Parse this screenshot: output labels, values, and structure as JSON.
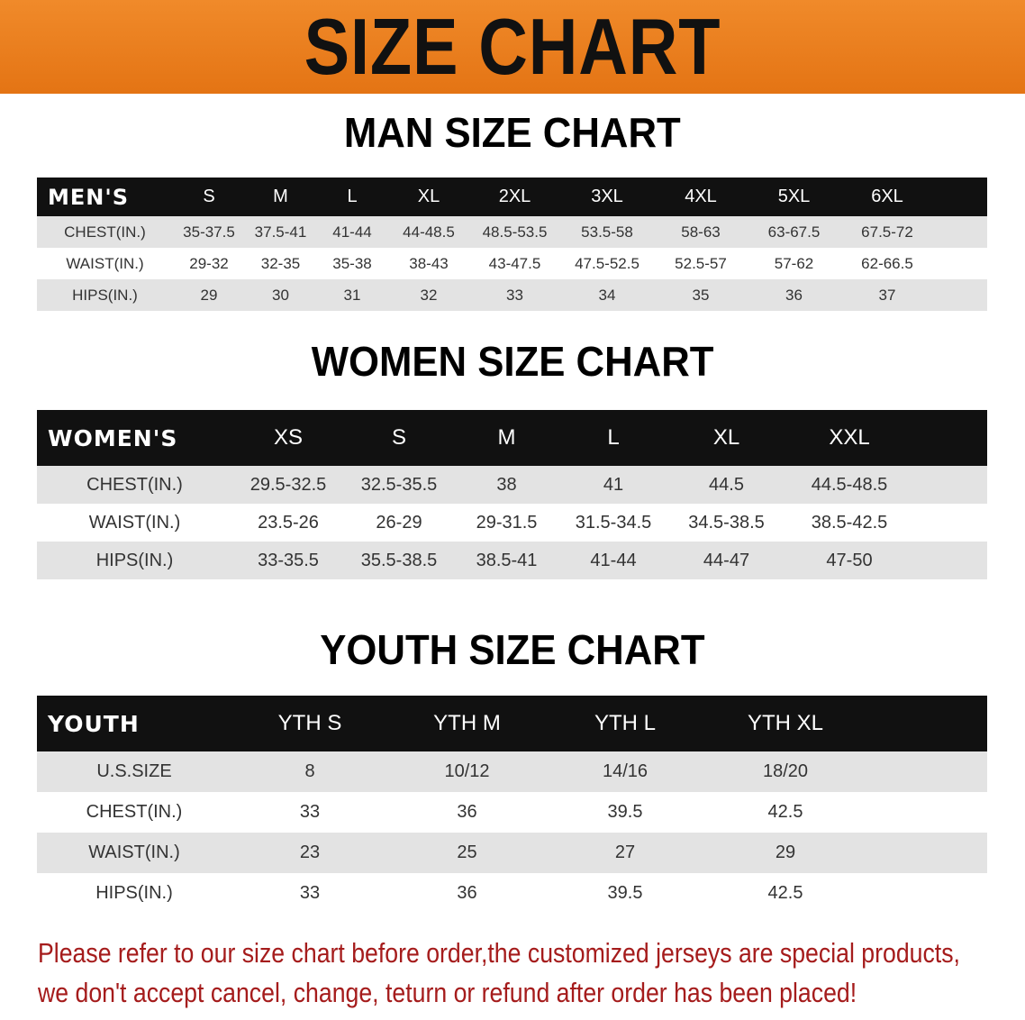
{
  "banner_title": "SIZE CHART",
  "men": {
    "heading": "MAN SIZE CHART",
    "header": [
      "MEN'S",
      "S",
      "M",
      "L",
      "XL",
      "2XL",
      "3XL",
      "4XL",
      "5XL",
      "6XL"
    ],
    "rows": [
      [
        "CHEST(IN.)",
        "35-37.5",
        "37.5-41",
        "41-44",
        "44-48.5",
        "48.5-53.5",
        "53.5-58",
        "58-63",
        "63-67.5",
        "67.5-72"
      ],
      [
        "WAIST(IN.)",
        "29-32",
        "32-35",
        "35-38",
        "38-43",
        "43-47.5",
        "47.5-52.5",
        "52.5-57",
        "57-62",
        "62-66.5"
      ],
      [
        "HIPS(IN.)",
        "29",
        "30",
        "31",
        "32",
        "33",
        "34",
        "35",
        "36",
        "37"
      ]
    ]
  },
  "women": {
    "heading": "WOMEN SIZE CHART",
    "header": [
      "WOMEN'S",
      "XS",
      "S",
      "M",
      "L",
      "XL",
      "XXL"
    ],
    "rows": [
      [
        "CHEST(IN.)",
        "29.5-32.5",
        "32.5-35.5",
        "38",
        "41",
        "44.5",
        "44.5-48.5"
      ],
      [
        "WAIST(IN.)",
        "23.5-26",
        "26-29",
        "29-31.5",
        "31.5-34.5",
        "34.5-38.5",
        "38.5-42.5"
      ],
      [
        "HIPS(IN.)",
        "33-35.5",
        "35.5-38.5",
        "38.5-41",
        "41-44",
        "44-47",
        "47-50"
      ]
    ]
  },
  "youth": {
    "heading": "YOUTH SIZE CHART",
    "header": [
      "YOUTH",
      "YTH S",
      "YTH M",
      "YTH L",
      "YTH XL"
    ],
    "rows": [
      [
        "U.S.SIZE",
        "8",
        "10/12",
        "14/16",
        "18/20"
      ],
      [
        "CHEST(IN.)",
        "33",
        "36",
        "39.5",
        "42.5"
      ],
      [
        "WAIST(IN.)",
        "23",
        "25",
        "27",
        "29"
      ],
      [
        "HIPS(IN.)",
        "33",
        "36",
        "39.5",
        "42.5"
      ]
    ]
  },
  "note": {
    "line1": "Please refer to our size chart before order,the customized jerseys are special products,",
    "line2": "we don't accept cancel, change, teturn or refund after order has been placed!"
  },
  "colors": {
    "banner": "#e47414",
    "header_row": "#111111",
    "stripe": "#e3e3e3",
    "note": "#a51c1c"
  }
}
